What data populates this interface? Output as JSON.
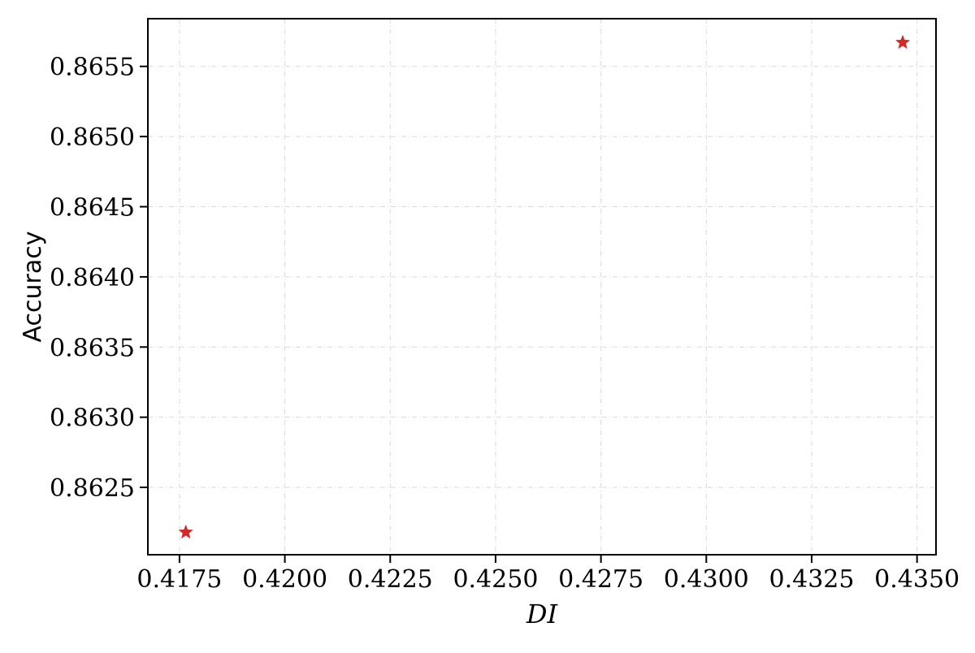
{
  "chart_data": {
    "type": "scatter",
    "title": "",
    "xlabel": "DI",
    "ylabel": "Accuracy",
    "xlim": [
      0.41675,
      0.43545
    ],
    "ylim": [
      0.86202,
      0.86584
    ],
    "x_ticks": [
      0.4175,
      0.42,
      0.4225,
      0.425,
      0.4275,
      0.43,
      0.4325,
      0.435
    ],
    "x_tick_labels": [
      "0.4175",
      "0.4200",
      "0.4225",
      "0.4250",
      "0.4275",
      "0.4300",
      "0.4325",
      "0.4350"
    ],
    "y_ticks": [
      0.8625,
      0.863,
      0.8635,
      0.864,
      0.8645,
      0.865,
      0.8655
    ],
    "y_tick_labels": [
      "0.8625",
      "0.8630",
      "0.8635",
      "0.8640",
      "0.8645",
      "0.8650",
      "0.8655"
    ],
    "grid": true,
    "marker": "star",
    "color": "#d62728",
    "points": [
      {
        "x": 0.41765,
        "y": 0.86218
      },
      {
        "x": 0.43466,
        "y": 0.86567
      }
    ]
  }
}
